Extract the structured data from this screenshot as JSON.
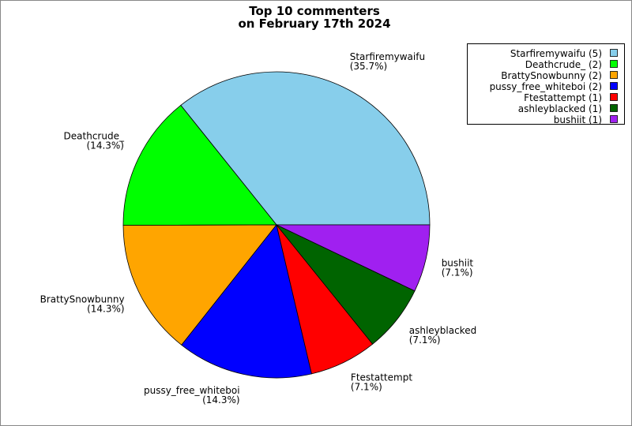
{
  "chart_data": {
    "type": "pie",
    "title": [
      "Top 10 commenters",
      "on February 17th 2024"
    ],
    "categories": [
      "Starfiremywaifu",
      "Deathcrude_",
      "BrattySnowbunny",
      "pussy_free_whiteboi",
      "Ftestattempt",
      "ashleyblacked",
      "bushiit"
    ],
    "values": [
      35.7,
      14.3,
      14.3,
      14.3,
      7.1,
      7.1,
      7.1
    ],
    "value_labels": [
      "(35.7%)",
      "(14.3%)",
      "(14.3%)",
      "(14.3%)",
      "(7.1%)",
      "(7.1%)",
      "(7.1%)"
    ],
    "colors": [
      "#87ceeb",
      "#00ff00",
      "#ffa500",
      "#0000ff",
      "#ff0000",
      "#006400",
      "#a020f0"
    ],
    "legend": [
      "Starfiremywaifu (5)",
      "Deathcrude_ (2)",
      "BrattySnowbunny (2)",
      "pussy_free_whiteboi (2)",
      "Ftestattempt (1)",
      "ashleyblacked (1)",
      "bushiit (1)"
    ],
    "legend_position": "upper right"
  }
}
